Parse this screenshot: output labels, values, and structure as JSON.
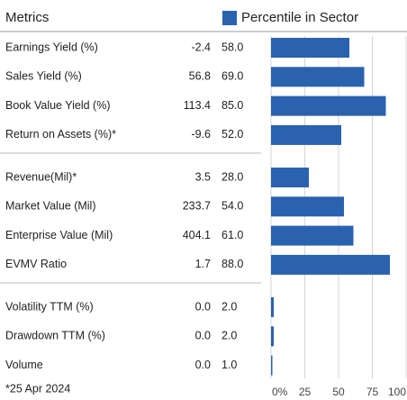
{
  "header": {
    "title": "Metrics"
  },
  "chart_data": {
    "type": "bar",
    "legend": "Percentile in Sector",
    "color": "#2a62b0",
    "groups": [
      {
        "categories": [
          "Earnings Yield (%)",
          "Sales Yield (%)",
          "Book Value Yield (%)",
          "Return on Assets (%)*"
        ],
        "metric_values": [
          "-2.4",
          "56.8",
          "113.4",
          "-9.6"
        ],
        "values": [
          58,
          69,
          85,
          52
        ],
        "value_labels": [
          "58.0",
          "69.0",
          "85.0",
          "52.0"
        ]
      },
      {
        "categories": [
          "Revenue(Mil)*",
          "Market Value (Mil)",
          "Enterprise Value (Mil)",
          "EVMV Ratio"
        ],
        "metric_values": [
          "3.5",
          "233.7",
          "404.1",
          "1.7"
        ],
        "values": [
          28,
          54,
          61,
          88
        ],
        "value_labels": [
          "28.0",
          "54.0",
          "61.0",
          "88.0"
        ]
      },
      {
        "categories": [
          "Volatility TTM (%)",
          "Drawdown TTM (%)",
          "Volume"
        ],
        "metric_values": [
          "0.0",
          "0.0",
          "0.0"
        ],
        "values": [
          2,
          2,
          1
        ],
        "value_labels": [
          "2.0",
          "2.0",
          "1.0"
        ]
      }
    ],
    "xlim": [
      0,
      100
    ],
    "xticks": [
      {
        "value": 0,
        "label": "0%"
      },
      25,
      50,
      75,
      100
    ],
    "grid": true
  },
  "footnote": "*25 Apr 2024"
}
